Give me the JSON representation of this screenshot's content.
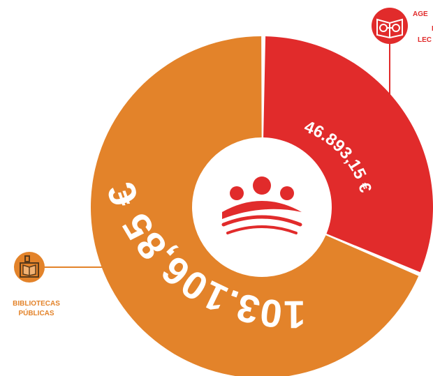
{
  "chart_data": {
    "type": "pie",
    "slices": [
      {
        "label_lines": [
          "AGE",
          "I",
          "LEC"
        ],
        "value": 46893.15,
        "value_label": "46.893,15 €",
        "color": "#e12b2b"
      },
      {
        "label_lines": [
          "BIBLIOTECAS",
          "PÚBLICAS"
        ],
        "value": 103106.85,
        "value_label": "103.106,85 €",
        "color": "#e3832a"
      }
    ]
  },
  "icons": {
    "agency": "reading-glasses-book-icon",
    "library": "library-building-icon",
    "center": "dots-and-waves-logo-icon"
  },
  "colors": {
    "red": "#e12b2b",
    "orange": "#e3832a",
    "white": "#ffffff"
  }
}
